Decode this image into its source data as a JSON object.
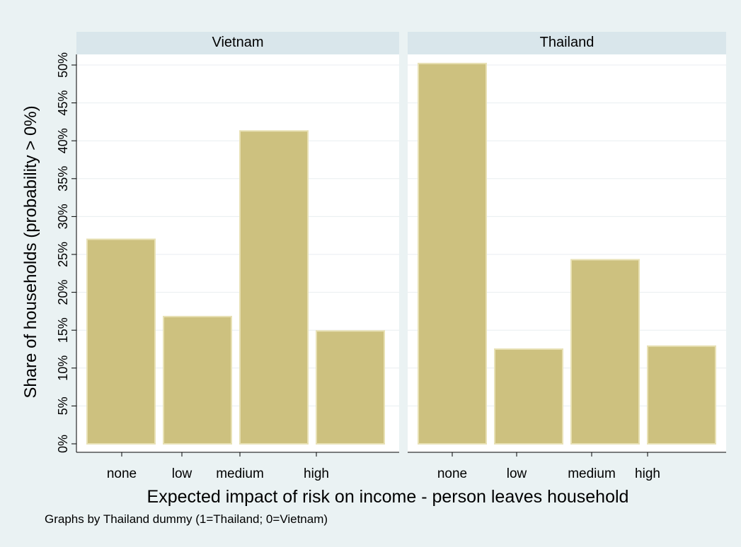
{
  "chart_data": {
    "type": "bar",
    "ylabel": "Share of households (probability > 0%)",
    "xlabel": "Expected impact of risk on income - person leaves household",
    "note": "Graphs by Thailand dummy (1=Thailand; 0=Vietnam)",
    "ylim": [
      0,
      50
    ],
    "yticks": [
      0,
      5,
      10,
      15,
      20,
      25,
      30,
      35,
      40,
      45,
      50
    ],
    "ytick_suffix": "%",
    "categories": [
      "none",
      "low",
      "medium",
      "high"
    ],
    "grid": true,
    "panels": [
      {
        "title": "Vietnam",
        "values": [
          27.0,
          16.8,
          41.3,
          14.9
        ]
      },
      {
        "title": "Thailand",
        "values": [
          50.2,
          12.5,
          24.3,
          12.9
        ]
      }
    ],
    "colors": {
      "background": "#eaf2f3",
      "plot_bg": "#ffffff",
      "header_bg": "#d9e6eb",
      "bar_fill": "#cdc17f",
      "bar_stroke": "#e8e1b5",
      "grid": "#e8eef0",
      "axis": "#000000"
    }
  }
}
